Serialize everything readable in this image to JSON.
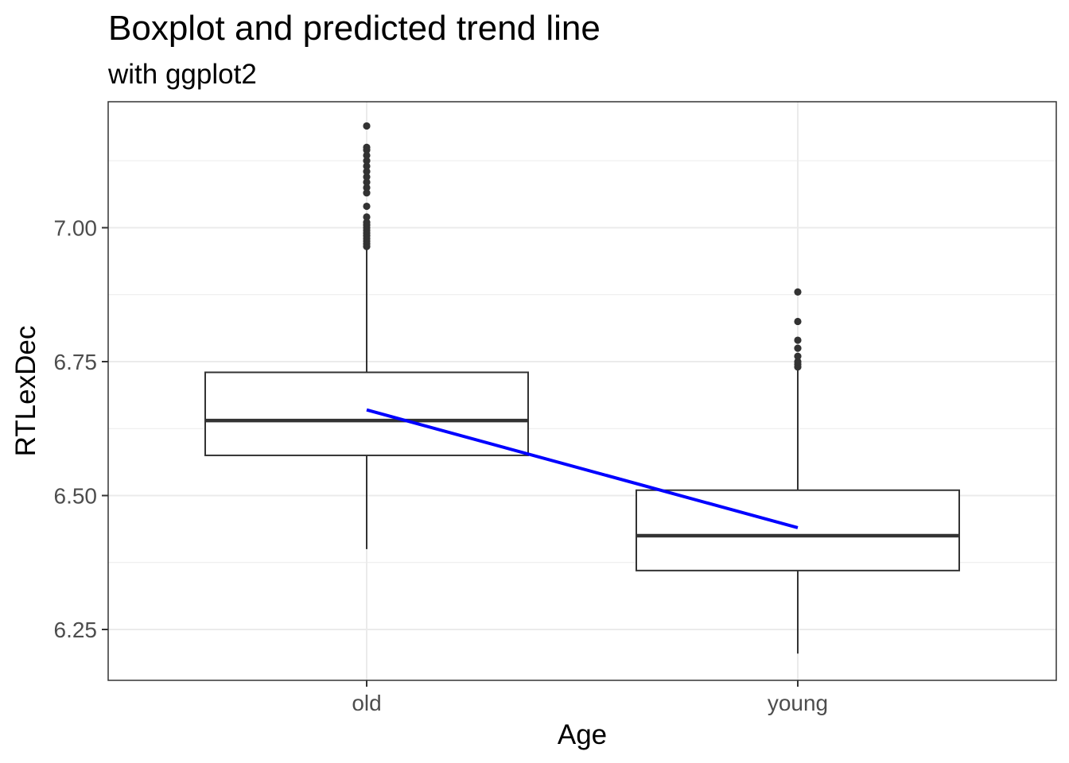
{
  "chart_data": {
    "type": "boxplot",
    "title": "Boxplot and predicted trend line",
    "subtitle": "with ggplot2",
    "xlabel": "Age",
    "ylabel": "RTLexDec",
    "categories": [
      "old",
      "young"
    ],
    "ylim": [
      6.16,
      7.24
    ],
    "yticks": [
      "6.25",
      "6.50",
      "6.75",
      "7.00"
    ],
    "grid": true,
    "boxes": [
      {
        "category": "old",
        "min": 6.4,
        "q1": 6.575,
        "median": 6.64,
        "q3": 6.73,
        "max": 6.96,
        "outliers": [
          6.965,
          6.97,
          6.975,
          6.98,
          6.985,
          6.99,
          6.995,
          7.0,
          7.005,
          7.01,
          7.02,
          7.04,
          7.065,
          7.075,
          7.085,
          7.095,
          7.105,
          7.115,
          7.125,
          7.135,
          7.145,
          7.15,
          7.19
        ]
      },
      {
        "category": "young",
        "min": 6.205,
        "q1": 6.36,
        "median": 6.425,
        "q3": 6.51,
        "max": 6.735,
        "outliers": [
          6.74,
          6.745,
          6.75,
          6.76,
          6.775,
          6.79,
          6.825,
          6.88
        ]
      }
    ],
    "trend_line": {
      "x": [
        "old",
        "young"
      ],
      "y": [
        6.66,
        6.44
      ],
      "color": "#0000ff"
    },
    "colors": {
      "box_stroke": "#333333",
      "outlier": "#333333",
      "grid": "#ebebeb",
      "panel_border": "#333333"
    }
  }
}
